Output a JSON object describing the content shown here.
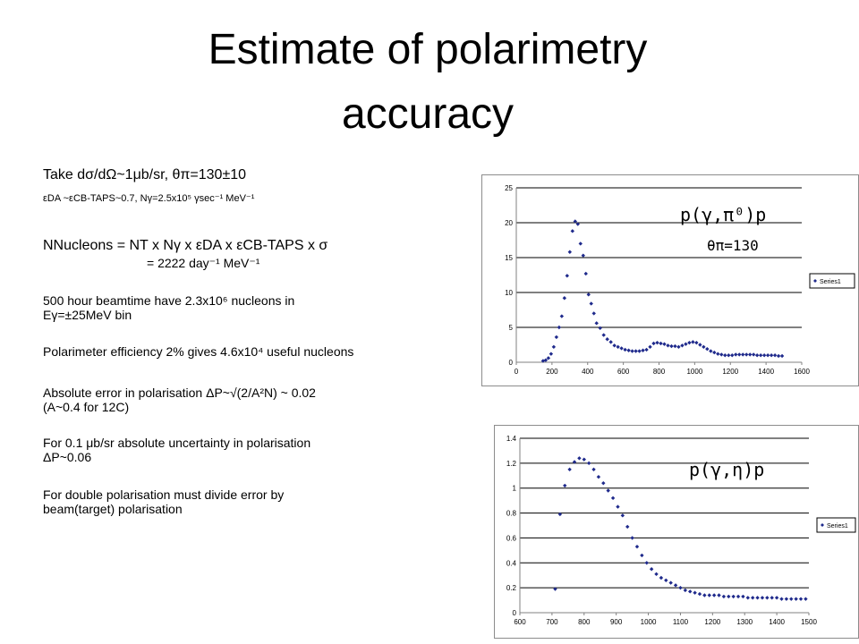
{
  "title": {
    "line1": "Estimate of polarimetry",
    "line2": "accuracy"
  },
  "left": {
    "take": "Take dσ/dΩ~1μb/sr, θπ=130±10",
    "eps_line": "εDA ~εCB-TAPS~0.7, Nγ=2.5x10⁵ γsec⁻¹ MeV⁻¹",
    "n_line": "NNucleons = NT x Nγ x εDA x εCB-TAPS x σ",
    "n_result": "= 2222 day⁻¹ MeV⁻¹",
    "p1a": "500 hour beamtime have 2.3x10⁶ nucleons in",
    "p1b": "Eγ=±25MeV bin",
    "p2": "Polarimeter efficiency 2% gives 4.6x10⁴ useful nucleons",
    "p3a": "Absolute error in polarisation ΔP~√(2/A²N) ~ 0.02",
    "p3b": "(A~0.4 for 12C)",
    "p4a": "For 0.1 μb/sr absolute uncertainty in polarisation",
    "p4b": "ΔP~0.06",
    "p5a": "For double polarisation must divide error by",
    "p5b": "beam(target) polarisation"
  },
  "chart1_reaction": "p(γ,π⁰)p",
  "chart1_angle": "θπ=130",
  "chart2_reaction": "p(γ,η)p",
  "chart_data": [
    {
      "type": "scatter",
      "xlim": [
        0,
        1600
      ],
      "ylim": [
        0,
        25
      ],
      "xticks": [
        "0",
        "200",
        "400",
        "600",
        "800",
        "1000",
        "1200",
        "1400",
        "1600"
      ],
      "yticks": [
        "0",
        "5",
        "10",
        "15",
        "20",
        "25"
      ],
      "grid": "horizontal",
      "legend": "right",
      "color": "#1f2a8c",
      "series": [
        {
          "name": "Series1",
          "x": [
            150,
            165,
            180,
            195,
            210,
            225,
            240,
            255,
            270,
            285,
            300,
            315,
            330,
            345,
            360,
            375,
            390,
            405,
            420,
            435,
            450,
            470,
            490,
            510,
            530,
            550,
            570,
            590,
            610,
            630,
            650,
            670,
            690,
            710,
            730,
            750,
            770,
            790,
            810,
            830,
            850,
            870,
            890,
            910,
            930,
            950,
            970,
            990,
            1010,
            1030,
            1050,
            1070,
            1090,
            1110,
            1130,
            1150,
            1170,
            1190,
            1210,
            1230,
            1250,
            1270,
            1290,
            1310,
            1330,
            1350,
            1370,
            1390,
            1410,
            1430,
            1450,
            1470,
            1490
          ],
          "y": [
            0.2,
            0.3,
            0.6,
            1.2,
            2.2,
            3.6,
            5.0,
            6.6,
            9.2,
            12.4,
            15.8,
            18.8,
            20.2,
            19.8,
            17.0,
            15.3,
            12.7,
            9.7,
            8.4,
            7.0,
            5.6,
            4.9,
            3.9,
            3.3,
            2.9,
            2.4,
            2.2,
            2.0,
            1.8,
            1.7,
            1.6,
            1.6,
            1.6,
            1.7,
            1.8,
            2.2,
            2.7,
            2.8,
            2.7,
            2.6,
            2.4,
            2.3,
            2.3,
            2.2,
            2.4,
            2.6,
            2.8,
            2.9,
            2.8,
            2.5,
            2.2,
            1.9,
            1.6,
            1.4,
            1.2,
            1.1,
            1.0,
            1.0,
            1.0,
            1.1,
            1.1,
            1.1,
            1.1,
            1.1,
            1.1,
            1.0,
            1.0,
            1.0,
            1.0,
            1.0,
            1.0,
            0.9,
            0.9
          ]
        }
      ]
    },
    {
      "type": "scatter",
      "xlim": [
        600,
        1500
      ],
      "ylim": [
        0,
        1.4
      ],
      "xticks": [
        "600",
        "700",
        "800",
        "900",
        "1000",
        "1100",
        "1200",
        "1300",
        "1400",
        "1500"
      ],
      "yticks": [
        "0",
        "0.2",
        "0.4",
        "0.6",
        "0.8",
        "1",
        "1.2",
        "1.4"
      ],
      "grid": "horizontal",
      "legend": "right",
      "color": "#1f2a8c",
      "series": [
        {
          "name": "Series1",
          "x": [
            710,
            725,
            740,
            755,
            770,
            785,
            800,
            815,
            830,
            845,
            860,
            875,
            890,
            905,
            920,
            935,
            950,
            965,
            980,
            995,
            1010,
            1025,
            1040,
            1055,
            1070,
            1085,
            1100,
            1115,
            1130,
            1145,
            1160,
            1175,
            1190,
            1205,
            1220,
            1235,
            1250,
            1265,
            1280,
            1295,
            1310,
            1325,
            1340,
            1355,
            1370,
            1385,
            1400,
            1415,
            1430,
            1445,
            1460,
            1475,
            1490
          ],
          "y": [
            0.19,
            0.79,
            1.02,
            1.15,
            1.21,
            1.24,
            1.23,
            1.2,
            1.15,
            1.09,
            1.04,
            0.98,
            0.92,
            0.85,
            0.78,
            0.69,
            0.6,
            0.53,
            0.46,
            0.4,
            0.35,
            0.31,
            0.28,
            0.26,
            0.24,
            0.22,
            0.2,
            0.18,
            0.17,
            0.16,
            0.15,
            0.14,
            0.14,
            0.14,
            0.14,
            0.13,
            0.13,
            0.13,
            0.13,
            0.13,
            0.12,
            0.12,
            0.12,
            0.12,
            0.12,
            0.12,
            0.12,
            0.11,
            0.11,
            0.11,
            0.11,
            0.11,
            0.11
          ]
        }
      ]
    }
  ]
}
